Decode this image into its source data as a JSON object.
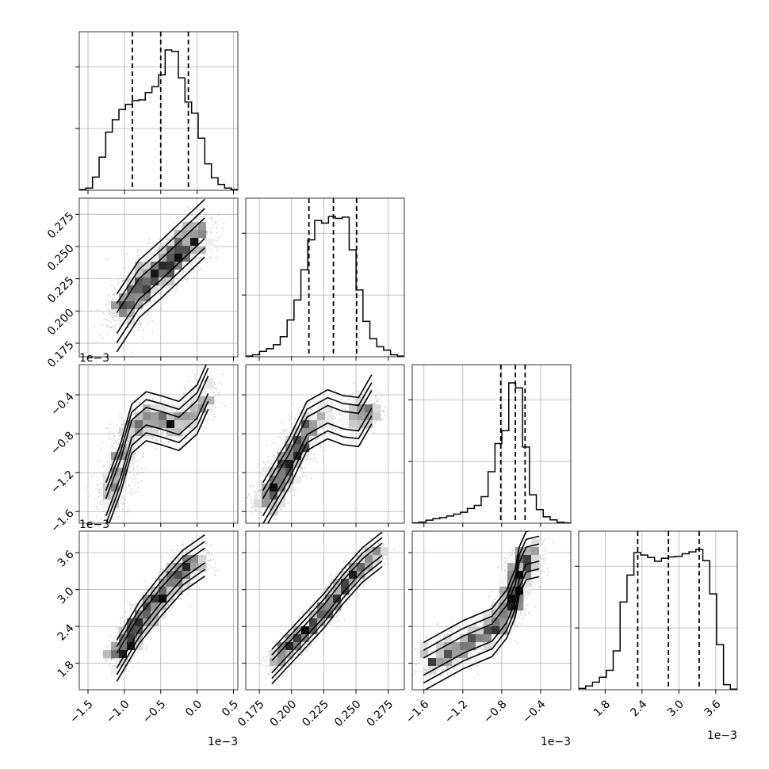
{
  "chart_data": {
    "type": "corner",
    "n_params": 4,
    "colors": {
      "line": "#000000",
      "grid": "#b0b0b0",
      "points": "#a8a8a8",
      "density_max": "#000000"
    },
    "params": [
      {
        "range": [
          -1.62,
          0.56
        ],
        "ticks": [
          -1.5,
          -1.0,
          -0.5,
          0.0,
          0.5
        ],
        "tick_labels": [
          "−1.5",
          "−1.0",
          "−0.5",
          "0.0",
          "0.5"
        ],
        "offset": "1e−3",
        "quantiles": [
          -0.89,
          -0.5,
          -0.12
        ]
      },
      {
        "range": [
          0.1645,
          0.2875
        ],
        "ticks": [
          0.175,
          0.2,
          0.225,
          0.25,
          0.275
        ],
        "tick_labels": [
          "0.175",
          "0.200",
          "0.225",
          "0.250",
          "0.275"
        ],
        "offset": "",
        "quantiles": [
          0.2135,
          0.2325,
          0.2505
        ]
      },
      {
        "range": [
          -1.72,
          -0.09
        ],
        "ticks": [
          -1.6,
          -1.2,
          -0.8,
          -0.4
        ],
        "tick_labels": [
          "−1.6",
          "−1.2",
          "−0.8",
          "−0.4"
        ],
        "offset": "1e−3",
        "quantiles": [
          -0.81,
          -0.66,
          -0.56
        ]
      },
      {
        "range": [
          1.37,
          3.95
        ],
        "ticks": [
          1.8,
          2.4,
          3.0,
          3.6
        ],
        "tick_labels": [
          "1.8",
          "2.4",
          "3.0",
          "3.6"
        ],
        "offset": "1e−3",
        "quantiles": [
          2.33,
          2.83,
          3.33
        ]
      }
    ],
    "histograms": [
      {
        "counts": [
          0.1,
          0.3,
          1.8,
          4.5,
          7.9,
          9.6,
          11.0,
          11.7,
          12.2,
          12.3,
          13.3,
          14.1,
          15.7,
          19.1,
          18.9,
          15.3,
          12.0,
          10.5,
          7.1,
          3.6,
          1.7,
          0.8,
          0.3,
          0.1
        ]
      },
      {
        "counts": [
          0.1,
          0.3,
          0.8,
          1.2,
          1.8,
          3.0,
          5.5,
          8.5,
          13.0,
          17.5,
          20.4,
          20.0,
          21.0,
          20.7,
          20.9,
          16.0,
          10.0,
          5.3,
          2.7,
          1.5,
          1.0,
          0.3,
          0.1
        ]
      },
      {
        "counts": [
          0.1,
          0.3,
          0.8,
          1.2,
          1.5,
          1.9,
          2.4,
          2.9,
          3.9,
          4.7,
          7.0,
          13.6,
          21.0,
          24.4,
          37.0,
          35.7,
          20.1,
          7.5,
          3.6,
          1.7,
          0.9,
          0.3,
          0.1
        ]
      },
      {
        "counts": [
          0.2,
          0.6,
          1.2,
          2.0,
          3.1,
          6.2,
          14.0,
          18.3,
          21.9,
          21.5,
          21.1,
          20.5,
          21.0,
          21.2,
          21.3,
          21.7,
          22.0,
          22.4,
          20.6,
          15.3,
          7.2,
          0.8,
          0.1
        ]
      }
    ],
    "pair_shapes": [
      {
        "row": 1,
        "col": 0,
        "spine": [
          [
            -1.1,
            0.191
          ],
          [
            -0.8,
            0.217
          ],
          [
            -0.5,
            0.232
          ],
          [
            -0.2,
            0.248
          ],
          [
            0.1,
            0.264
          ]
        ],
        "spread": 0.008
      },
      {
        "row": 2,
        "col": 0,
        "spine": [
          [
            -1.25,
            -1.55
          ],
          [
            -1.05,
            -1.15
          ],
          [
            -0.9,
            -0.75
          ],
          [
            -0.7,
            -0.62
          ],
          [
            -0.5,
            -0.66
          ],
          [
            -0.25,
            -0.72
          ],
          [
            0.0,
            -0.55
          ],
          [
            0.15,
            -0.3
          ]
        ],
        "spread": 0.09
      },
      {
        "row": 3,
        "col": 0,
        "spine": [
          [
            -1.1,
            1.85
          ],
          [
            -0.8,
            2.45
          ],
          [
            -0.5,
            2.9
          ],
          [
            -0.2,
            3.3
          ],
          [
            0.1,
            3.55
          ]
        ],
        "spread": 0.12
      },
      {
        "row": 2,
        "col": 1,
        "spine": [
          [
            0.178,
            -1.55
          ],
          [
            0.198,
            -1.1
          ],
          [
            0.212,
            -0.72
          ],
          [
            0.228,
            -0.6
          ],
          [
            0.24,
            -0.66
          ],
          [
            0.252,
            -0.68
          ],
          [
            0.262,
            -0.45
          ]
        ],
        "spread": 0.09
      },
      {
        "row": 3,
        "col": 1,
        "spine": [
          [
            0.185,
            1.75
          ],
          [
            0.205,
            2.2
          ],
          [
            0.225,
            2.65
          ],
          [
            0.24,
            3.05
          ],
          [
            0.255,
            3.4
          ],
          [
            0.27,
            3.65
          ]
        ],
        "spread": 0.1
      },
      {
        "row": 3,
        "col": 2,
        "spine": [
          [
            -1.6,
            1.75
          ],
          [
            -1.2,
            2.1
          ],
          [
            -0.9,
            2.3
          ],
          [
            -0.75,
            2.6
          ],
          [
            -0.66,
            2.95
          ],
          [
            -0.62,
            3.3
          ],
          [
            -0.55,
            3.55
          ],
          [
            -0.42,
            3.6
          ]
        ],
        "spread": 0.14
      }
    ]
  }
}
